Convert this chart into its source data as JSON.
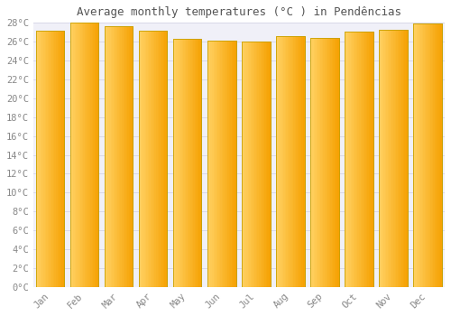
{
  "title": "Average monthly temperatures (°C ) in Pendências",
  "months": [
    "Jan",
    "Feb",
    "Mar",
    "Apr",
    "May",
    "Jun",
    "Jul",
    "Aug",
    "Sep",
    "Oct",
    "Nov",
    "Dec"
  ],
  "values": [
    27.2,
    28.0,
    27.6,
    27.2,
    26.3,
    26.1,
    26.0,
    26.6,
    26.4,
    27.1,
    27.3,
    27.9
  ],
  "bar_color": "#FFA500",
  "bar_gradient_left": "#FFD060",
  "bar_gradient_right": "#F5A000",
  "bar_edge_color": "#C8A000",
  "background_color": "#FFFFFF",
  "plot_bg_color": "#F0F0F8",
  "grid_color": "#D8D8E8",
  "ylim": [
    0,
    28
  ],
  "ytick_step": 2,
  "title_fontsize": 9,
  "tick_fontsize": 7.5,
  "tick_label_color": "#888888"
}
